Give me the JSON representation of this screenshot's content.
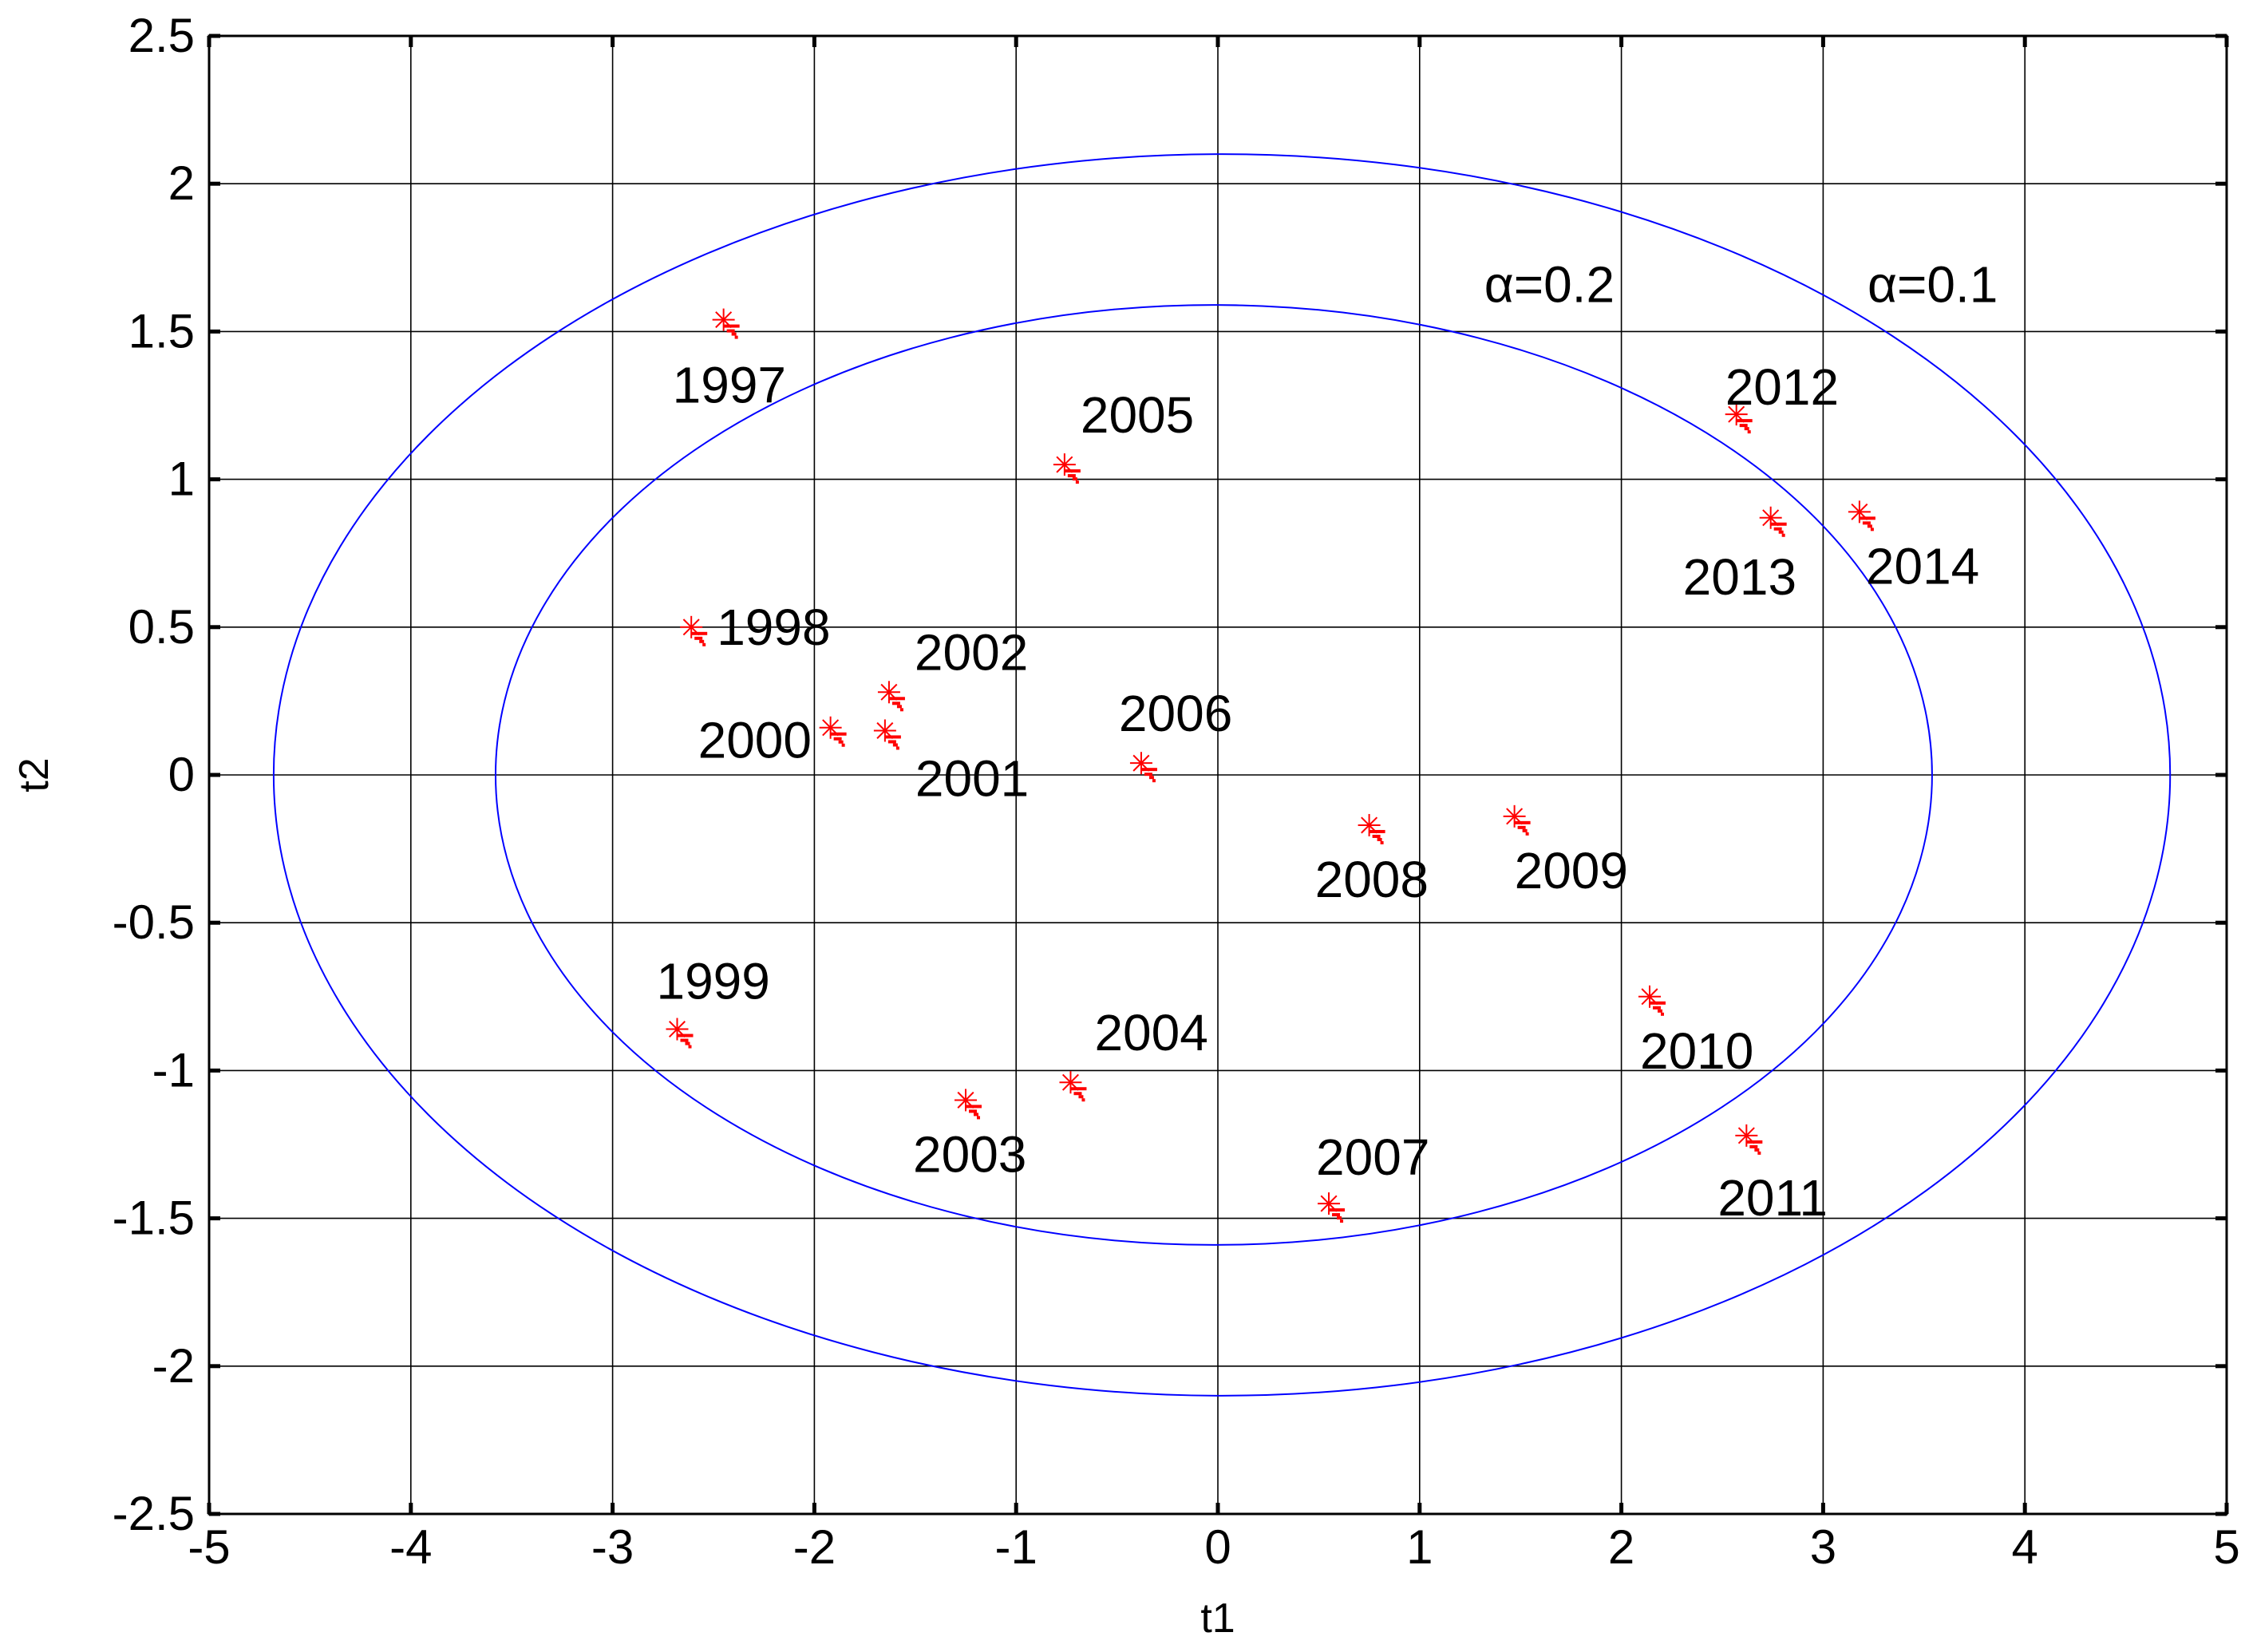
{
  "chart_data": {
    "type": "scatter",
    "xlabel": "t1",
    "ylabel": "t2",
    "xlim": [
      -5,
      5
    ],
    "ylim": [
      -2.5,
      2.5
    ],
    "xticks": [
      -5,
      -4,
      -3,
      -2,
      -1,
      0,
      1,
      2,
      3,
      4,
      5
    ],
    "yticks": [
      -2.5,
      -2,
      -1.5,
      -1,
      -0.5,
      0,
      0.5,
      1,
      1.5,
      2,
      2.5
    ],
    "ytick_labels": [
      "-2.5",
      "-2",
      "-1.5",
      "-1",
      "-0.5",
      "0",
      "0.5",
      "1",
      "1.5",
      "2",
      "2.5"
    ],
    "grid": true,
    "marker_color": "#ff0000",
    "ellipse_color": "#0000ff",
    "points": [
      {
        "label": "1997",
        "x": -2.45,
        "y": 1.54
      },
      {
        "label": "1998",
        "x": -2.61,
        "y": 0.5
      },
      {
        "label": "1999",
        "x": -2.68,
        "y": -0.86
      },
      {
        "label": "2000",
        "x": -1.92,
        "y": 0.16
      },
      {
        "label": "2001",
        "x": -1.65,
        "y": 0.15
      },
      {
        "label": "2002",
        "x": -1.63,
        "y": 0.28
      },
      {
        "label": "2003",
        "x": -1.25,
        "y": -1.1
      },
      {
        "label": "2004",
        "x": -0.73,
        "y": -1.04
      },
      {
        "label": "2005",
        "x": -0.76,
        "y": 1.05
      },
      {
        "label": "2006",
        "x": -0.38,
        "y": 0.04
      },
      {
        "label": "2007",
        "x": 0.55,
        "y": -1.45
      },
      {
        "label": "2008",
        "x": 0.75,
        "y": -0.17
      },
      {
        "label": "2009",
        "x": 1.47,
        "y": -0.14
      },
      {
        "label": "2010",
        "x": 2.14,
        "y": -0.75
      },
      {
        "label": "2011",
        "x": 2.62,
        "y": -1.22
      },
      {
        "label": "2012",
        "x": 2.57,
        "y": 1.22
      },
      {
        "label": "2013",
        "x": 2.74,
        "y": 0.87
      },
      {
        "label": "2014",
        "x": 3.18,
        "y": 0.89
      }
    ],
    "ellipses": [
      {
        "label": "α=0.2",
        "cx": -0.02,
        "cy": 0,
        "rx": 3.56,
        "ry": 1.59
      },
      {
        "label": "α=0.1",
        "cx": 0.02,
        "cy": 0,
        "rx": 4.7,
        "ry": 2.1
      }
    ]
  }
}
